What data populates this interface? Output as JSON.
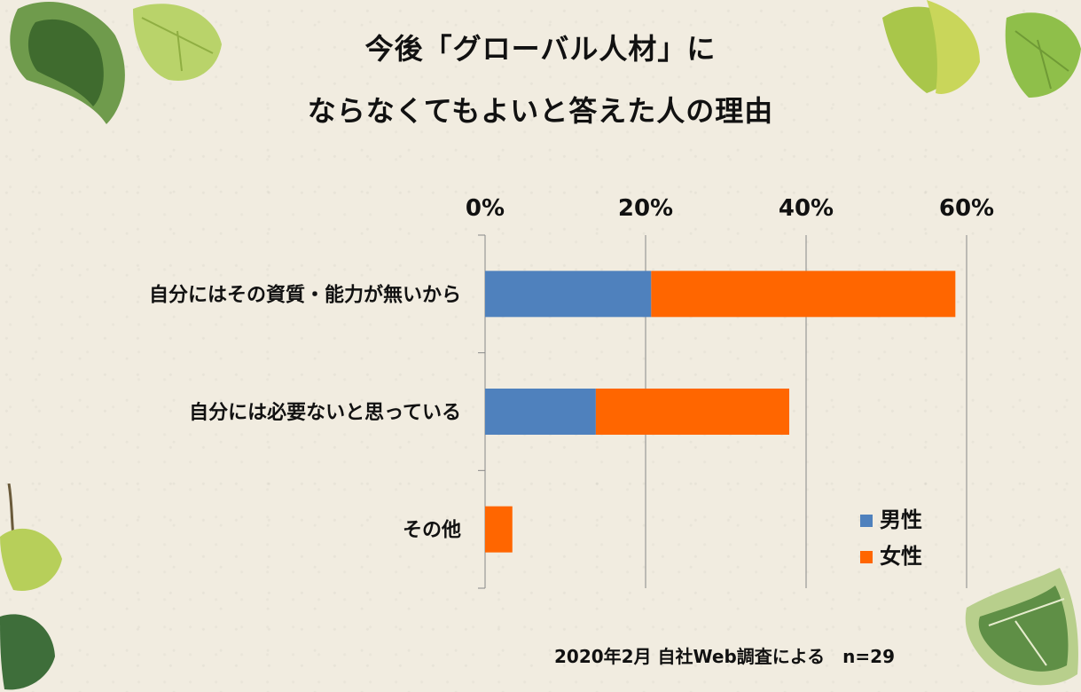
{
  "title_line1": "今後「グローバル人材」に",
  "title_line2": "ならなくてもよいと答えた人の理由",
  "footer_note": "2020年2月 自社Web調査による　n=29",
  "colors": {
    "male": "#4f81bd",
    "female": "#ff6600",
    "axis": "#888888",
    "background": "#f1ece0"
  },
  "decorations": [
    "ivy-leaf-top-left",
    "ivy-leaf-top-right",
    "ivy-leaf-bottom-left",
    "ivy-leaf-bottom-right"
  ],
  "chart_data": {
    "type": "bar",
    "orientation": "horizontal",
    "stacked": true,
    "categories": [
      "自分にはその資質・能力が無いから",
      "自分には必要ないと思っている",
      "その他"
    ],
    "series": [
      {
        "name": "男性",
        "values": [
          20.7,
          13.8,
          0
        ]
      },
      {
        "name": "女性",
        "values": [
          37.9,
          24.1,
          3.4
        ]
      }
    ],
    "xlim": [
      0,
      60
    ],
    "x_ticks": [
      "0%",
      "20%",
      "40%",
      "60%"
    ],
    "grid": "vertical",
    "legend_position": "bottom-right"
  }
}
